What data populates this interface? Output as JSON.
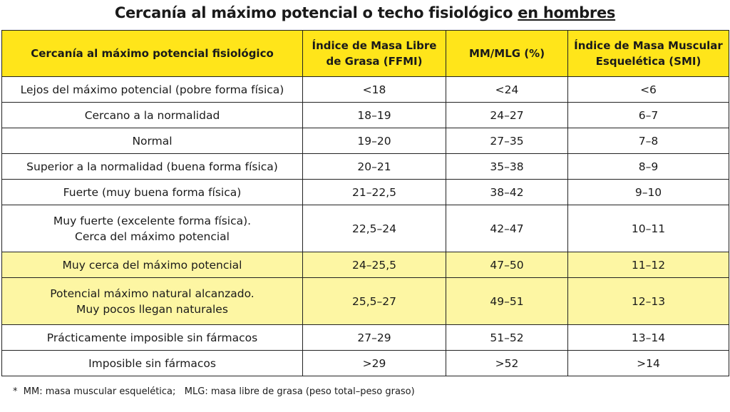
{
  "title": {
    "text": "Cercanía al máximo potencial o techo fisiológico ",
    "emphasis": "en hombres"
  },
  "table": {
    "header": [
      "Cercanía al máximo potencial fisiológico",
      "Índice de Masa Libre\nde Grasa (FFMI)",
      "MM/MLG (%)",
      "Índice de Masa Muscular\nEsquelética (SMI)"
    ],
    "rows": [
      [
        "Lejos del máximo potencial (pobre forma física)",
        "<18",
        "<24",
        "<6"
      ],
      [
        "Cercano a la normalidad",
        "18–19",
        "24–27",
        "6–7"
      ],
      [
        "Normal",
        "19–20",
        "27–35",
        "7–8"
      ],
      [
        "Superior a la normalidad (buena forma física)",
        "20–21",
        "35–38",
        "8–9"
      ],
      [
        "Fuerte (muy buena forma física)",
        "21–22,5",
        "38–42",
        "9–10"
      ],
      [
        "Muy fuerte (excelente forma física).\nCerca del máximo potencial",
        "22,5–24",
        "42–47",
        "10–11"
      ],
      [
        "Muy cerca del máximo potencial",
        "24–25,5",
        "47–50",
        "11–12"
      ],
      [
        "Potencial máximo natural alcanzado.\nMuy pocos llegan naturales",
        "25,5–27",
        "49–51",
        "12–13"
      ],
      [
        "Prácticamente imposible sin fármacos",
        "27–29",
        "51–52",
        "13–14"
      ],
      [
        "Imposible sin fármacos",
        ">29",
        ">52",
        ">14"
      ]
    ]
  },
  "footnote": "*  MM: masa muscular esquelética;   MLG: masa libre de grasa (peso total–peso graso)"
}
